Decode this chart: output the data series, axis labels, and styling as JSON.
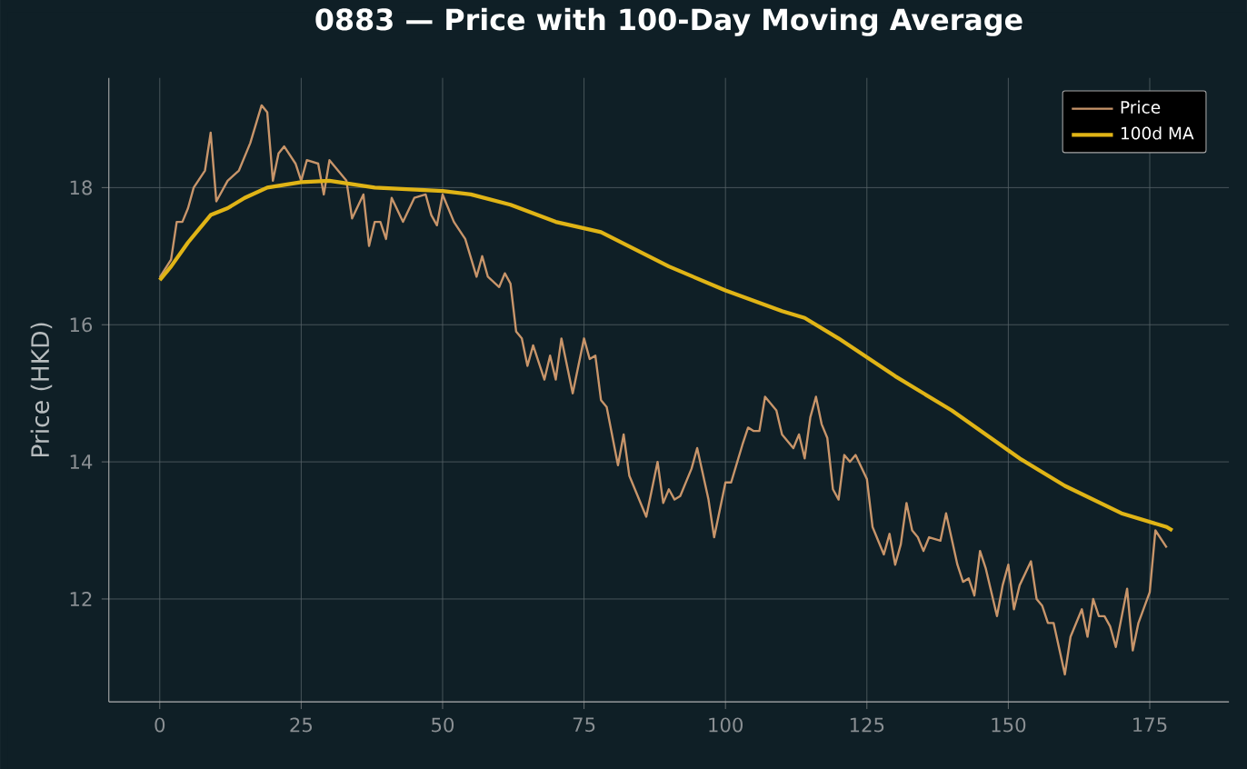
{
  "chart_data": {
    "type": "line",
    "title": "0883 — Price with 100-Day Moving Average",
    "ylabel": "Price (HKD)",
    "xlim": [
      -9,
      189
    ],
    "ylim": [
      10.5,
      19.6
    ],
    "xticks": [
      0,
      25,
      50,
      75,
      100,
      125,
      150,
      175
    ],
    "yticks": [
      12,
      14,
      16,
      18
    ],
    "grid": true,
    "legend": "top right",
    "series": [
      {
        "name": "Price",
        "color": "#c8956a",
        "x": [
          0,
          2,
          3,
          4,
          5,
          6,
          8,
          9,
          10,
          12,
          14,
          16,
          18,
          19,
          20,
          21,
          22,
          24,
          25,
          26,
          28,
          29,
          30,
          33,
          34,
          36,
          37,
          38,
          39,
          40,
          41,
          43,
          45,
          47,
          48,
          49,
          50,
          52,
          54,
          56,
          57,
          58,
          60,
          61,
          62,
          63,
          64,
          65,
          66,
          68,
          69,
          70,
          71,
          73,
          75,
          76,
          77,
          78,
          79,
          81,
          82,
          83,
          85,
          86,
          88,
          89,
          90,
          91,
          92,
          94,
          95,
          97,
          98,
          100,
          101,
          103,
          104,
          105,
          106,
          107,
          109,
          110,
          112,
          113,
          114,
          115,
          116,
          117,
          118,
          119,
          120,
          121,
          122,
          123,
          125,
          126,
          128,
          129,
          130,
          131,
          132,
          133,
          134,
          135,
          136,
          138,
          139,
          141,
          142,
          143,
          144,
          145,
          146,
          148,
          149,
          150,
          151,
          152,
          154,
          155,
          156,
          157,
          158,
          160,
          161,
          163,
          164,
          165,
          166,
          167,
          168,
          169,
          171,
          172,
          173,
          175,
          176,
          178
        ],
        "values": [
          16.69,
          16.95,
          17.5,
          17.5,
          17.7,
          18.0,
          18.25,
          18.8,
          17.8,
          18.1,
          18.25,
          18.65,
          19.2,
          19.1,
          18.1,
          18.5,
          18.6,
          18.35,
          18.1,
          18.4,
          18.35,
          17.9,
          18.4,
          18.1,
          17.55,
          17.9,
          17.15,
          17.5,
          17.5,
          17.25,
          17.85,
          17.5,
          17.85,
          17.9,
          17.6,
          17.45,
          17.9,
          17.5,
          17.25,
          16.7,
          17.0,
          16.7,
          16.55,
          16.75,
          16.6,
          15.9,
          15.8,
          15.4,
          15.7,
          15.2,
          15.55,
          15.2,
          15.8,
          15.0,
          15.8,
          15.5,
          15.55,
          14.9,
          14.8,
          13.95,
          14.4,
          13.8,
          13.4,
          13.2,
          14.0,
          13.4,
          13.6,
          13.45,
          13.5,
          13.9,
          14.2,
          13.45,
          12.9,
          13.7,
          13.7,
          14.25,
          14.5,
          14.45,
          14.45,
          14.95,
          14.75,
          14.4,
          14.2,
          14.4,
          14.05,
          14.65,
          14.95,
          14.55,
          14.35,
          13.6,
          13.45,
          14.1,
          14.0,
          14.1,
          13.75,
          13.05,
          12.65,
          12.95,
          12.5,
          12.8,
          13.4,
          13.0,
          12.9,
          12.7,
          12.9,
          12.85,
          13.25,
          12.5,
          12.25,
          12.3,
          12.05,
          12.7,
          12.45,
          11.75,
          12.2,
          12.5,
          11.85,
          12.2,
          12.55,
          12.0,
          11.9,
          11.65,
          11.65,
          10.9,
          11.45,
          11.85,
          11.45,
          12.0,
          11.75,
          11.75,
          11.6,
          11.3,
          12.15,
          11.25,
          11.65,
          12.1,
          13.0,
          12.75
        ]
      },
      {
        "name": "100d MA",
        "color": "#e0b416",
        "x": [
          0,
          2,
          5,
          9,
          12,
          15,
          19,
          25,
          30,
          38,
          50,
          55,
          62,
          70,
          78,
          90,
          100,
          110,
          114,
          120,
          130,
          140,
          152,
          160,
          170,
          178,
          179
        ],
        "values": [
          16.65,
          16.85,
          17.2,
          17.6,
          17.7,
          17.85,
          18.0,
          18.08,
          18.1,
          18.0,
          17.95,
          17.9,
          17.75,
          17.5,
          17.35,
          16.85,
          16.5,
          16.2,
          16.1,
          15.8,
          15.25,
          14.75,
          14.05,
          13.65,
          13.25,
          13.05,
          13.0
        ]
      }
    ]
  }
}
